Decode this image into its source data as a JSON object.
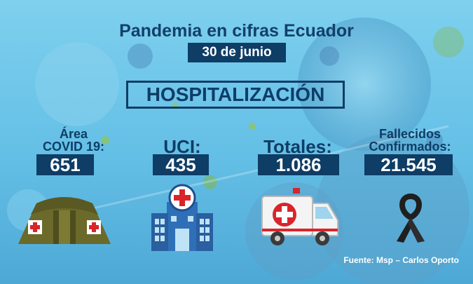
{
  "header": {
    "title": "Pandemia en cifras Ecuador",
    "date": "30 de junio"
  },
  "section": {
    "title": "HOSPITALIZACIÓN"
  },
  "stats": [
    {
      "label_line1": "Área",
      "label_line2": "COVID 19:",
      "value": "651",
      "icon": "military-tent-icon"
    },
    {
      "label": "UCI:",
      "value": "435",
      "icon": "hospital-building-icon"
    },
    {
      "label": "Totales:",
      "value": "1.086",
      "icon": "ambulance-icon"
    },
    {
      "label_line1": "Fallecidos",
      "label_line2": "Confirmados:",
      "value": "21.545",
      "icon": "mourning-ribbon-icon"
    }
  ],
  "footer": {
    "source": "Fuente: Msp – Carlos Oporto"
  },
  "colors": {
    "navy": "#0e3d66",
    "background": "#6cc5ea",
    "cross_red": "#d9252a",
    "tent_olive": "#6b6a2a"
  }
}
